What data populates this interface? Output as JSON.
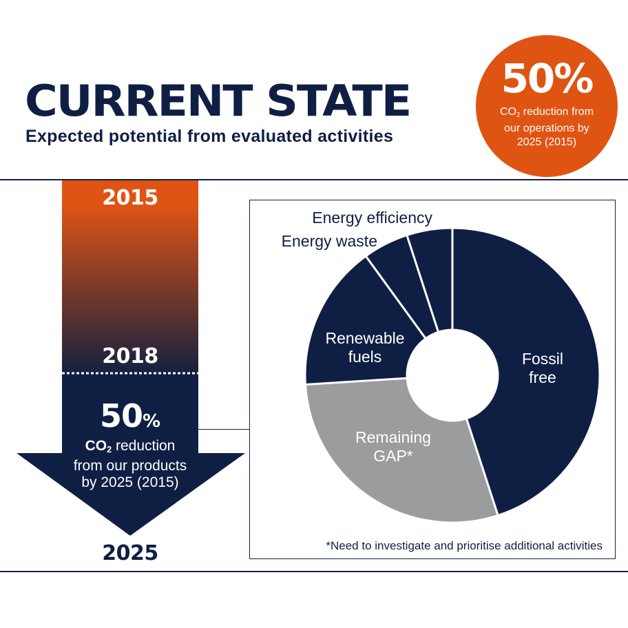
{
  "header": {
    "title": "CURRENT STATE",
    "subtitle": "Expected potential from evaluated activities"
  },
  "badge": {
    "percent": "50%",
    "line1_pre": "CO",
    "line1_sub": "2",
    "line1_post": " reduction from",
    "line2": "our operations by",
    "line3": "2025 (2015)",
    "color": "#e05413"
  },
  "arrow": {
    "year_start": "2015",
    "year_mid": "2018",
    "year_end": "2025",
    "percent_number": "50",
    "percent_symbol": "%",
    "label_co": "CO",
    "label_sub": "2",
    "label_rest": " reduction",
    "label_line2": "from our products",
    "label_line3": "by 2025 (2015)",
    "gradient_top": "#e05413",
    "gradient_bottom": "#0f1f44"
  },
  "chart_data": {
    "type": "pie",
    "donut": true,
    "title": "",
    "slices": [
      {
        "label_lines": [
          "Fossil",
          "free"
        ],
        "value": 45,
        "color": "#0f1f44"
      },
      {
        "label_lines": [
          "Remaining",
          "GAP*"
        ],
        "value": 29,
        "color": "#9b9c9e"
      },
      {
        "label_lines": [
          "Renewable",
          "fuels"
        ],
        "value": 16,
        "color": "#0f1f44"
      },
      {
        "label_lines": [
          "Energy waste"
        ],
        "value": 5,
        "color": "#0f1f44"
      },
      {
        "label_lines": [
          "Energy efficiency"
        ],
        "value": 5,
        "color": "#0f1f44"
      }
    ],
    "footnote": "*Need to investigate and prioritise additional activities"
  }
}
